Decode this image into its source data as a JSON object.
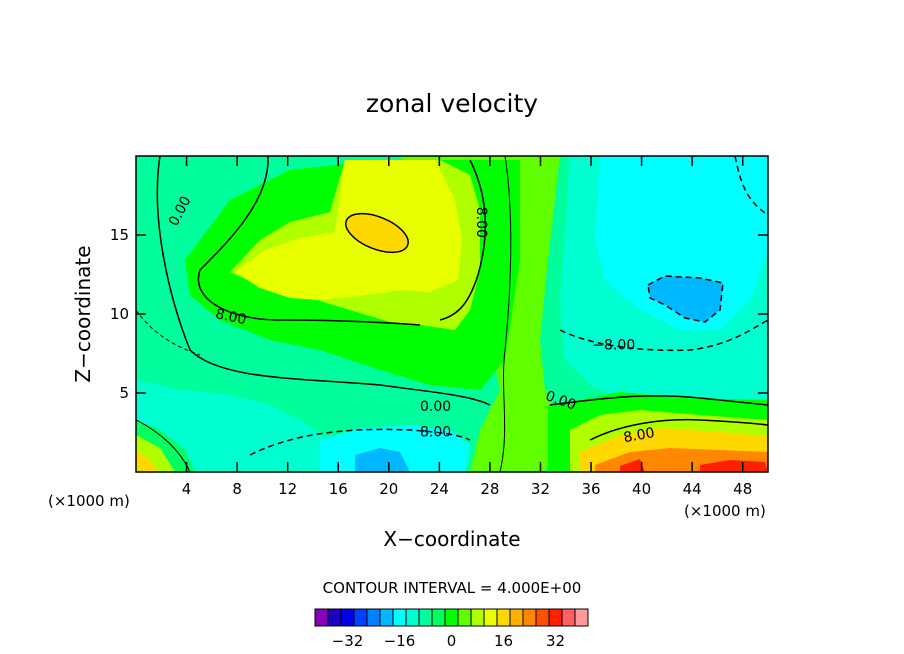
{
  "chart_data": {
    "type": "heatmap",
    "title": "zonal velocity",
    "xlabel": "X−coordinate",
    "ylabel": "Z−coordinate",
    "x_multiplier_label": "(×1000 m)",
    "z_multiplier_label": "(×1000 m)",
    "xlim": [
      0,
      50
    ],
    "ylim": [
      0,
      20
    ],
    "x_ticks": [
      4,
      8,
      12,
      16,
      20,
      24,
      28,
      32,
      36,
      40,
      44,
      48
    ],
    "y_ticks": [
      5,
      10,
      15
    ],
    "contour_interval_text": "CONTOUR INTERVAL = 4.000E+00",
    "contour_interval": 4.0,
    "contour_labels": [
      {
        "text": "0.00",
        "x": 3.5,
        "z": 16.5,
        "rotate": -62
      },
      {
        "text": "8.00",
        "x": 7.5,
        "z": 9.8,
        "rotate": 12
      },
      {
        "text": "0.00",
        "x": 23.7,
        "z": 4.1,
        "rotate": 0
      },
      {
        "text": "8.00",
        "x": 23.7,
        "z": 2.5,
        "rotate": 0
      },
      {
        "text": "8.00",
        "x": 27.3,
        "z": 15.8,
        "rotate": 90
      },
      {
        "text": "0.00",
        "x": 33.6,
        "z": 4.5,
        "rotate": 20
      },
      {
        "text": "−8.00",
        "x": 37.8,
        "z": 8.0,
        "rotate": 0
      },
      {
        "text": "8.00",
        "x": 39.8,
        "z": 2.3,
        "rotate": -10
      }
    ],
    "colorbar": {
      "labels": [
        "−32",
        "−16",
        "0",
        "16",
        "32"
      ],
      "colors": [
        "#8a00b8",
        "#1c00c4",
        "#0000e8",
        "#0040ff",
        "#0080ff",
        "#00b8ff",
        "#00ffff",
        "#00ffd0",
        "#00ff9c",
        "#00ff60",
        "#00ff00",
        "#60ff00",
        "#b0ff00",
        "#e8ff00",
        "#ffd800",
        "#ffb000",
        "#ff8800",
        "#ff5000",
        "#ff2000",
        "#ff6060",
        "#ff9a9a"
      ]
    }
  }
}
